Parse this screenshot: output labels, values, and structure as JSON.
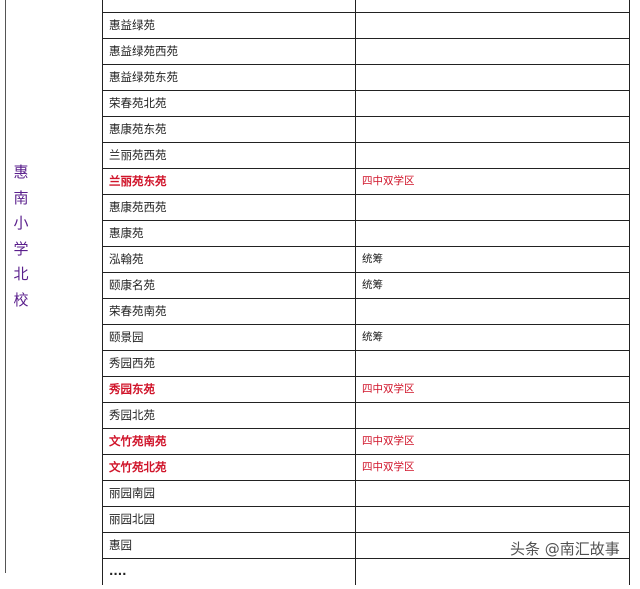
{
  "school_label": [
    "惠",
    "南",
    "小",
    "学",
    "北",
    "校"
  ],
  "rows": [
    {
      "name": "",
      "note": "",
      "highlight": false
    },
    {
      "name": "惠益绿苑",
      "note": "",
      "highlight": false
    },
    {
      "name": "惠益绿苑西苑",
      "note": "",
      "highlight": false
    },
    {
      "name": "惠益绿苑东苑",
      "note": "",
      "highlight": false
    },
    {
      "name": "荣春苑北苑",
      "note": "",
      "highlight": false
    },
    {
      "name": "惠康苑东苑",
      "note": "",
      "highlight": false
    },
    {
      "name": "兰丽苑西苑",
      "note": "",
      "highlight": false
    },
    {
      "name": "兰丽苑东苑",
      "note": "四中双学区",
      "highlight": true
    },
    {
      "name": "惠康苑西苑",
      "note": "",
      "highlight": false
    },
    {
      "name": "惠康苑",
      "note": "",
      "highlight": false
    },
    {
      "name": "泓翰苑",
      "note": "统筹",
      "highlight": false
    },
    {
      "name": "颐康名苑",
      "note": "统筹",
      "highlight": false
    },
    {
      "name": "荣春苑南苑",
      "note": "",
      "highlight": false
    },
    {
      "name": "颐景园",
      "note": "统筹",
      "highlight": false
    },
    {
      "name": "秀园西苑",
      "note": "",
      "highlight": false
    },
    {
      "name": "秀园东苑",
      "note": "四中双学区",
      "highlight": true
    },
    {
      "name": "秀园北苑",
      "note": "",
      "highlight": false
    },
    {
      "name": "文竹苑南苑",
      "note": "四中双学区",
      "highlight": true
    },
    {
      "name": "文竹苑北苑",
      "note": "四中双学区",
      "highlight": true
    },
    {
      "name": "丽园南园",
      "note": "",
      "highlight": false
    },
    {
      "name": "丽园北园",
      "note": "",
      "highlight": false
    },
    {
      "name": "惠园",
      "note": "",
      "highlight": false
    },
    {
      "name": "····",
      "note": "",
      "highlight": false
    }
  ],
  "watermark": "头条 @南汇故事",
  "colors": {
    "highlight": "#d0142a",
    "school": "#5a1f8c"
  }
}
